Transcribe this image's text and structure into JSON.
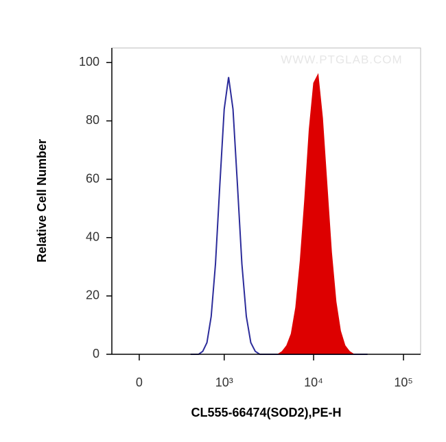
{
  "chart_data": {
    "type": "area",
    "xlabel": "CL555-66474(SOD2),PE-H",
    "ylabel": "Relative Cell Number",
    "annotation": "WWW.PTGLAB.COM",
    "xscale": "biexponential",
    "x": [
      398,
      447,
      501,
      562,
      631,
      708,
      794,
      891,
      1000,
      1122,
      1259,
      1413,
      1585,
      1778,
      1995,
      2239,
      2512,
      2818,
      3162,
      3548,
      3981,
      4467,
      5012,
      5623,
      6310,
      7079,
      7943,
      8913,
      10000,
      11220,
      12589,
      14125,
      15849,
      17783,
      19953,
      22387,
      25119,
      28184,
      31623,
      35481,
      39811
    ],
    "series": [
      {
        "style": "line",
        "color": "#2b2b9a",
        "values": [
          0,
          0,
          0,
          1,
          4,
          13,
          31,
          58,
          84,
          95,
          84,
          58,
          31,
          13,
          4,
          1,
          0,
          0,
          0,
          0,
          0,
          0,
          0,
          0,
          0,
          0,
          0,
          0,
          0,
          0,
          0,
          0,
          0,
          0,
          0,
          0,
          0,
          0,
          0,
          0,
          0
        ]
      },
      {
        "style": "fill",
        "color": "#dd0000",
        "values": [
          0,
          0,
          0,
          0,
          0,
          0,
          0,
          0,
          0,
          0,
          0,
          0,
          0,
          0,
          0,
          0,
          0,
          0,
          0,
          0,
          0,
          1,
          3,
          7,
          16,
          32,
          53,
          77,
          93,
          96,
          81,
          58,
          35,
          18,
          8,
          3,
          1,
          0,
          0,
          0,
          0
        ]
      }
    ],
    "xlim": [
      -175,
      155000
    ],
    "xticks": [
      0,
      {
        "value": 1000,
        "label": "10³"
      },
      {
        "value": 10000,
        "label": "10⁴"
      },
      {
        "value": 100000,
        "label": "10⁵"
      }
    ],
    "ylim": [
      0,
      105
    ],
    "yticks": [
      0,
      20,
      40,
      60,
      80,
      100
    ]
  }
}
